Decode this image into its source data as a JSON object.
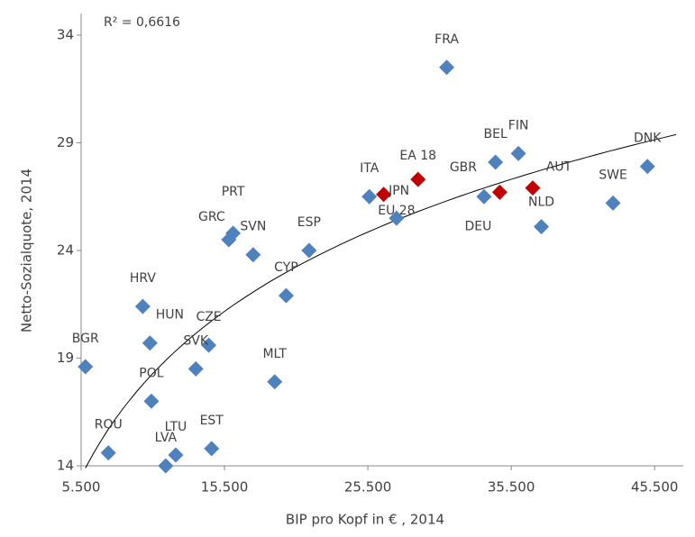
{
  "chart_data": {
    "type": "scatter",
    "annotation": "R² = 0,6616",
    "xlabel": "BIP pro Kopf in € , 2014",
    "ylabel": "Netto-Sozialquote, 2014",
    "xlim": [
      5500,
      47500
    ],
    "ylim": [
      14,
      35
    ],
    "xticks": [
      {
        "value": 5500,
        "label": "5.500"
      },
      {
        "value": 15500,
        "label": "15.500"
      },
      {
        "value": 25500,
        "label": "25.500"
      },
      {
        "value": 35500,
        "label": "35.500"
      },
      {
        "value": 45500,
        "label": "45.500"
      }
    ],
    "yticks": [
      14,
      19,
      24,
      29,
      34
    ],
    "trendline": {
      "type": "log",
      "a": 7.4,
      "b": -50.23,
      "xlim": [
        5800,
        47000
      ],
      "color": "#000000"
    },
    "points": [
      {
        "label": "BGR",
        "x": 5800,
        "y": 18.6,
        "color": "#4f81bd"
      },
      {
        "label": "ROU",
        "x": 7400,
        "y": 14.6,
        "color": "#4f81bd"
      },
      {
        "label": "LVA",
        "x": 11400,
        "y": 14.0,
        "color": "#4f81bd"
      },
      {
        "label": "LTU",
        "x": 12100,
        "y": 14.5,
        "color": "#4f81bd"
      },
      {
        "label": "EST",
        "x": 14600,
        "y": 14.8,
        "color": "#4f81bd"
      },
      {
        "label": "POL",
        "x": 10400,
        "y": 17.0,
        "color": "#4f81bd"
      },
      {
        "label": "HRV",
        "x": 9800,
        "y": 21.4,
        "color": "#4f81bd"
      },
      {
        "label": "HUN",
        "x": 10300,
        "y": 19.7,
        "color": "#4f81bd"
      },
      {
        "label": "CZE",
        "x": 14400,
        "y": 19.6,
        "color": "#4f81bd"
      },
      {
        "label": "SVK",
        "x": 13500,
        "y": 18.5,
        "color": "#4f81bd"
      },
      {
        "label": "MLT",
        "x": 19000,
        "y": 17.9,
        "color": "#4f81bd"
      },
      {
        "label": "PRT",
        "x": 16100,
        "y": 24.8,
        "color": "#4f81bd"
      },
      {
        "label": "GRC",
        "x": 15800,
        "y": 24.5,
        "color": "#4f81bd"
      },
      {
        "label": "SVN",
        "x": 17500,
        "y": 23.8,
        "color": "#4f81bd"
      },
      {
        "label": "ESP",
        "x": 21400,
        "y": 24.0,
        "color": "#4f81bd"
      },
      {
        "label": "CYP",
        "x": 19800,
        "y": 21.9,
        "color": "#4f81bd"
      },
      {
        "label": "ITA",
        "x": 25600,
        "y": 26.5,
        "color": "#4f81bd"
      },
      {
        "label": "JPN",
        "x": 26600,
        "y": 26.6,
        "color": "#c00000"
      },
      {
        "label": "EA 18",
        "x": 29000,
        "y": 27.3,
        "color": "#c00000"
      },
      {
        "label": "EU 28",
        "x": 27500,
        "y": 25.5,
        "color": "#4f81bd"
      },
      {
        "label": "FRA",
        "x": 31000,
        "y": 32.5,
        "color": "#4f81bd"
      },
      {
        "label": "BEL",
        "x": 34400,
        "y": 28.1,
        "color": "#4f81bd"
      },
      {
        "label": "FIN",
        "x": 36000,
        "y": 28.5,
        "color": "#4f81bd"
      },
      {
        "label": "GBR",
        "x": 33600,
        "y": 26.5,
        "color": "#4f81bd"
      },
      {
        "label": "DEU",
        "x": 34700,
        "y": 26.7,
        "color": "#c00000"
      },
      {
        "label": "AUT",
        "x": 37000,
        "y": 26.9,
        "color": "#c00000"
      },
      {
        "label": "NLD",
        "x": 37600,
        "y": 25.1,
        "color": "#4f81bd"
      },
      {
        "label": "SWE",
        "x": 42600,
        "y": 26.2,
        "color": "#4f81bd"
      },
      {
        "label": "DNK",
        "x": 45000,
        "y": 27.9,
        "color": "#4f81bd"
      }
    ]
  }
}
